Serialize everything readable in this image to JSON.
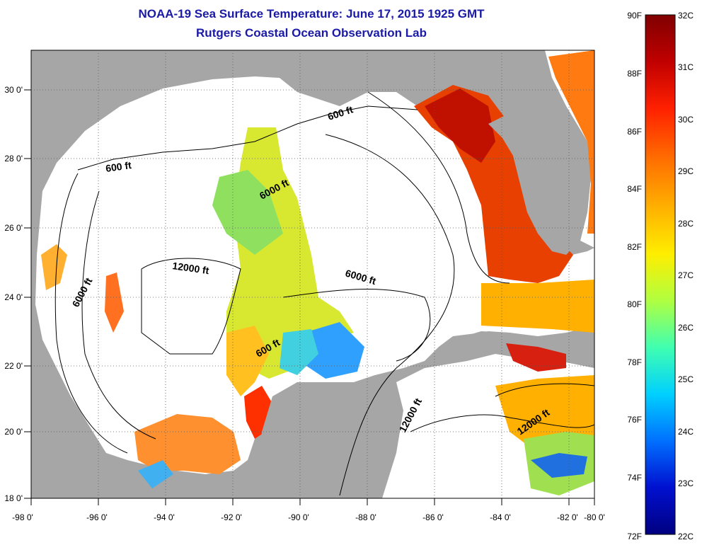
{
  "title": "NOAA-19 Sea Surface Temperature:  June 17, 2015 1925 GMT",
  "subtitle": "Rutgers Coastal Ocean Observation Lab",
  "x_ticks": [
    "-98 0'",
    "-96 0'",
    "-94 0'",
    "-92 0'",
    "-90 0'",
    "-88 0'",
    "-86 0'",
    "-84 0'",
    "-82 0'",
    "-80 0'"
  ],
  "y_ticks": [
    "30 0'",
    "28 0'",
    "26 0'",
    "24 0'",
    "22 0'",
    "20 0'",
    "18 0'"
  ],
  "contour_labels": [
    "600 ft",
    "600 ft",
    "6000 ft",
    "12000 ft",
    "6000 ft",
    "6000 ft",
    "600 ft",
    "12000 ft",
    "12000 ft"
  ],
  "colorbar": {
    "f_labels": [
      "90F",
      "88F",
      "86F",
      "84F",
      "82F",
      "80F",
      "78F",
      "76F",
      "74F",
      "72F"
    ],
    "c_labels": [
      "32C",
      "31C",
      "30C",
      "29C",
      "28C",
      "27C",
      "26C",
      "25C",
      "24C",
      "23C",
      "22C"
    ]
  },
  "colors": {
    "title": "#1a1aa6",
    "land": "#a6a6a6",
    "ocean_no_data": "#ffffff",
    "scale": [
      "#800000",
      "#c00000",
      "#ff2000",
      "#ff7000",
      "#ffb000",
      "#ffee00",
      "#b0ff40",
      "#40ffb0",
      "#00d0ff",
      "#0070ff",
      "#0010d0",
      "#000080"
    ]
  }
}
